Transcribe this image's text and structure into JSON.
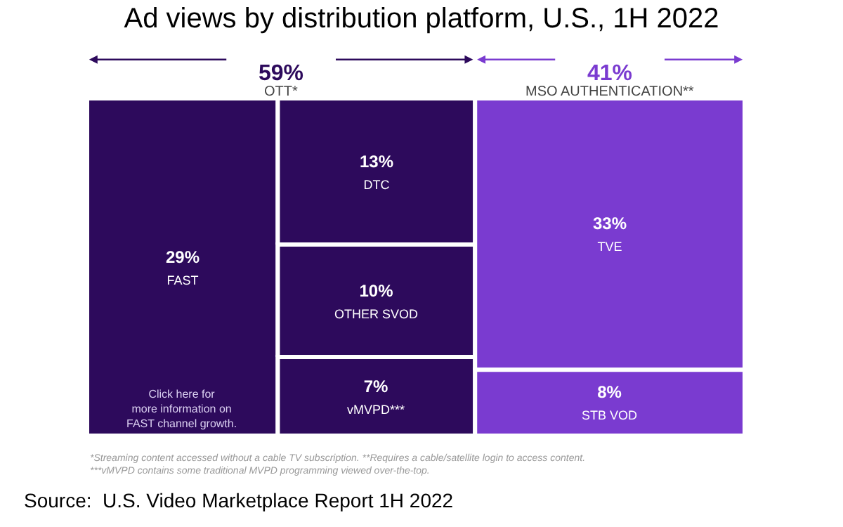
{
  "chart_data": {
    "type": "other",
    "title": "Ad views by distribution platform, U.S., 1H 2022",
    "categories": [
      "FAST",
      "DTC",
      "OTHER SVOD",
      "vMVPD***",
      "TVE",
      "STB VOD"
    ],
    "series": [
      {
        "name": "OTT*",
        "color": "#2d0a5c",
        "values": [
          29,
          13,
          10,
          7,
          null,
          null
        ],
        "value_labels": [
          "29%",
          "13%",
          "10%",
          "7%",
          null,
          null
        ]
      },
      {
        "name": "MSO AUTHENTICATION**",
        "color": "#7a3bd0",
        "values": [
          null,
          null,
          null,
          null,
          33,
          8
        ],
        "value_labels": [
          null,
          null,
          null,
          null,
          "33%",
          "8%"
        ]
      }
    ],
    "totals": [
      "59%",
      "41%"
    ],
    "annotations": [
      "Click here for\nmore information on\nFAST channel growth.",
      "*Streaming content accessed without a cable TV subscription. **Requires a cable/satellite login to access content.\n***vMVPD contains some traditional MVPD programming viewed over-the-top.",
      "Source:  U.S. Video Marketplace Report 1H 2022"
    ]
  }
}
